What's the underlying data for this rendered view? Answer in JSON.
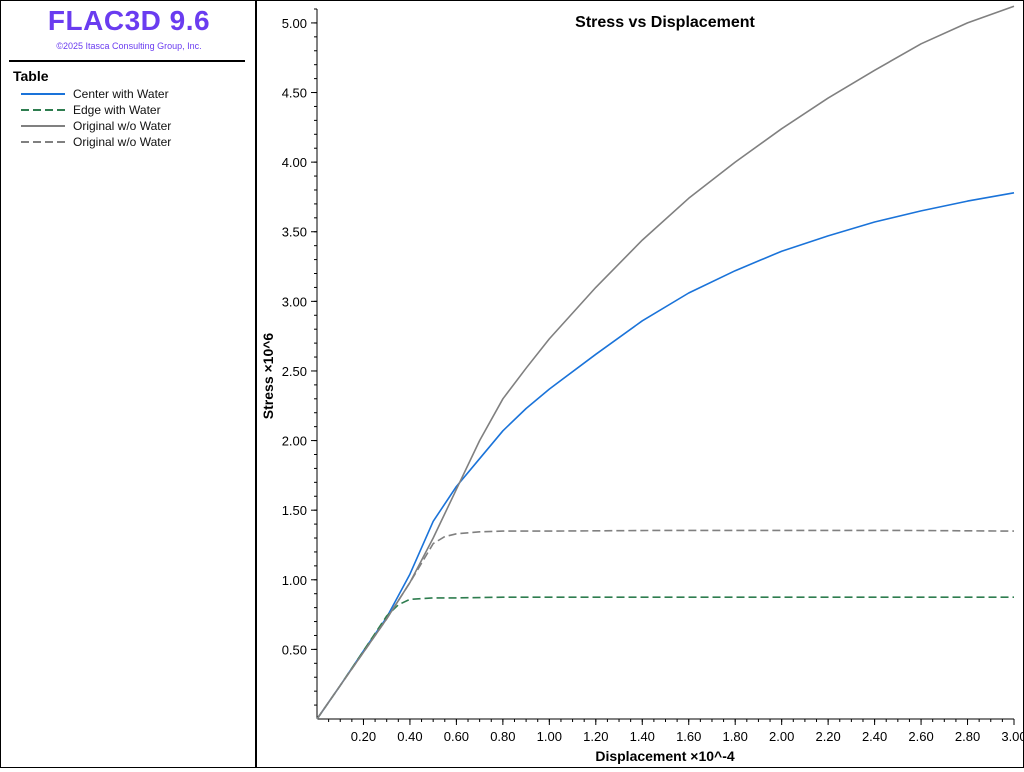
{
  "app": {
    "title": "FLAC3D 9.6",
    "copyright": "©2025 Itasca Consulting Group, Inc."
  },
  "legend": {
    "heading": "Table",
    "items": [
      {
        "label": "Center with Water",
        "color": "#1a73d9",
        "dash": "solid"
      },
      {
        "label": "Edge with Water",
        "color": "#2e7d4f",
        "dash": "dashed"
      },
      {
        "label": "Original w/o Water",
        "color": "#808080",
        "dash": "solid"
      },
      {
        "label": "Original w/o Water",
        "color": "#808080",
        "dash": "dashed"
      }
    ]
  },
  "chart_data": {
    "type": "line",
    "title": "Stress vs Displacement",
    "xlabel": "Displacement ×10^-4",
    "ylabel": "Stress ×10^6",
    "xlim": [
      0,
      3.0
    ],
    "ylim": [
      0,
      5.1
    ],
    "x_ticks": [
      "0.20",
      "0.40",
      "0.60",
      "0.80",
      "1.00",
      "1.20",
      "1.40",
      "1.60",
      "1.80",
      "2.00",
      "2.20",
      "2.40",
      "2.60",
      "2.80",
      "3.00"
    ],
    "y_ticks": [
      "0.50",
      "1.00",
      "1.50",
      "2.00",
      "2.50",
      "3.00",
      "3.50",
      "4.00",
      "4.50",
      "5.00"
    ],
    "grid": false,
    "series": [
      {
        "name": "Center with Water",
        "color": "#1a73d9",
        "dash": "solid",
        "x": [
          0,
          0.1,
          0.2,
          0.3,
          0.4,
          0.5,
          0.6,
          0.7,
          0.8,
          0.9,
          1.0,
          1.2,
          1.4,
          1.6,
          1.8,
          2.0,
          2.2,
          2.4,
          2.6,
          2.8,
          3.0
        ],
        "y": [
          0,
          0.24,
          0.49,
          0.73,
          1.04,
          1.42,
          1.67,
          1.87,
          2.07,
          2.23,
          2.37,
          2.62,
          2.86,
          3.06,
          3.22,
          3.36,
          3.47,
          3.57,
          3.65,
          3.72,
          3.78
        ]
      },
      {
        "name": "Edge with Water",
        "color": "#2e7d4f",
        "dash": "dashed",
        "x": [
          0,
          0.1,
          0.2,
          0.3,
          0.35,
          0.4,
          0.5,
          0.6,
          0.8,
          1.0,
          1.5,
          2.0,
          2.5,
          3.0
        ],
        "y": [
          0,
          0.24,
          0.49,
          0.74,
          0.82,
          0.86,
          0.87,
          0.87,
          0.875,
          0.875,
          0.875,
          0.875,
          0.875,
          0.875
        ]
      },
      {
        "name": "Original w/o Water",
        "color": "#808080",
        "dash": "solid",
        "x": [
          0,
          0.1,
          0.2,
          0.3,
          0.4,
          0.5,
          0.6,
          0.7,
          0.8,
          0.9,
          1.0,
          1.2,
          1.4,
          1.6,
          1.8,
          2.0,
          2.2,
          2.4,
          2.6,
          2.8,
          3.0
        ],
        "y": [
          0,
          0.24,
          0.48,
          0.72,
          0.98,
          1.3,
          1.65,
          2.0,
          2.3,
          2.52,
          2.73,
          3.1,
          3.44,
          3.74,
          4.0,
          4.24,
          4.46,
          4.66,
          4.85,
          5.0,
          5.12
        ]
      },
      {
        "name": "Original w/o Water",
        "color": "#808080",
        "dash": "dashed",
        "x": [
          0,
          0.1,
          0.2,
          0.3,
          0.4,
          0.45,
          0.5,
          0.55,
          0.6,
          0.7,
          0.8,
          1.0,
          1.5,
          2.0,
          2.5,
          3.0
        ],
        "y": [
          0,
          0.24,
          0.48,
          0.72,
          0.98,
          1.12,
          1.26,
          1.31,
          1.33,
          1.345,
          1.35,
          1.35,
          1.355,
          1.355,
          1.355,
          1.35
        ]
      }
    ]
  }
}
